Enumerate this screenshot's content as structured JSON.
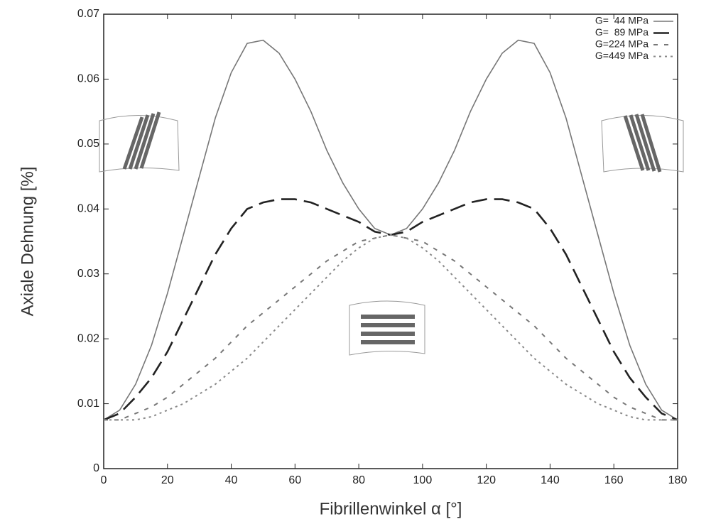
{
  "chart_data": {
    "type": "line",
    "xlabel": "Fibrillenwinkel α [°]",
    "ylabel": "Axiale Dehnung [%]",
    "x": [
      0,
      5,
      10,
      15,
      20,
      25,
      30,
      35,
      40,
      45,
      50,
      55,
      60,
      65,
      70,
      75,
      80,
      85,
      90,
      95,
      100,
      105,
      110,
      115,
      120,
      125,
      130,
      135,
      140,
      145,
      150,
      155,
      160,
      165,
      170,
      175,
      180
    ],
    "xlim": [
      0,
      180
    ],
    "xticks": [
      0,
      20,
      40,
      60,
      80,
      100,
      120,
      140,
      160,
      180
    ],
    "ylim": [
      0,
      0.07
    ],
    "yticks": [
      0,
      0.01,
      0.02,
      0.03,
      0.04,
      0.05,
      0.06,
      0.07
    ],
    "legend": "upper right",
    "series": [
      {
        "name": "G=  44 MPa",
        "color": "#777777",
        "line_style": "solid",
        "values": [
          0.0075,
          0.009,
          0.013,
          0.019,
          0.027,
          0.036,
          0.045,
          0.054,
          0.061,
          0.0655,
          0.066,
          0.064,
          0.06,
          0.055,
          0.049,
          0.044,
          0.04,
          0.037,
          0.036,
          0.037,
          0.04,
          0.044,
          0.049,
          0.055,
          0.06,
          0.064,
          0.066,
          0.0655,
          0.061,
          0.054,
          0.045,
          0.036,
          0.027,
          0.019,
          0.013,
          0.009,
          0.0075
        ]
      },
      {
        "name": "G=  89 MPa",
        "color": "#222222",
        "line_style": "dashed",
        "values": [
          0.0075,
          0.0085,
          0.011,
          0.014,
          0.018,
          0.023,
          0.028,
          0.033,
          0.037,
          0.04,
          0.041,
          0.0415,
          0.0415,
          0.041,
          0.04,
          0.039,
          0.038,
          0.0365,
          0.036,
          0.0365,
          0.038,
          0.039,
          0.04,
          0.041,
          0.0415,
          0.0415,
          0.041,
          0.04,
          0.037,
          0.033,
          0.028,
          0.023,
          0.018,
          0.014,
          0.011,
          0.0085,
          0.0075
        ]
      },
      {
        "name": "G=224 MPa",
        "color": "#777777",
        "line_style": "dashdot",
        "values": [
          0.0075,
          0.0075,
          0.0085,
          0.0095,
          0.011,
          0.013,
          0.015,
          0.017,
          0.0195,
          0.022,
          0.024,
          0.026,
          0.028,
          0.03,
          0.032,
          0.0335,
          0.035,
          0.0355,
          0.036,
          0.0355,
          0.035,
          0.0335,
          0.032,
          0.03,
          0.028,
          0.026,
          0.024,
          0.022,
          0.0195,
          0.017,
          0.015,
          0.013,
          0.011,
          0.0095,
          0.0085,
          0.0075,
          0.0075
        ]
      },
      {
        "name": "G=449 MPa",
        "color": "#888888",
        "line_style": "dotted",
        "values": [
          0.0075,
          0.0075,
          0.0075,
          0.008,
          0.009,
          0.01,
          0.0115,
          0.013,
          0.015,
          0.017,
          0.0195,
          0.022,
          0.0245,
          0.027,
          0.0295,
          0.032,
          0.034,
          0.0355,
          0.036,
          0.0355,
          0.034,
          0.032,
          0.0295,
          0.027,
          0.0245,
          0.022,
          0.0195,
          0.017,
          0.015,
          0.013,
          0.0115,
          0.01,
          0.009,
          0.008,
          0.0075,
          0.0075,
          0.0075
        ]
      }
    ]
  }
}
